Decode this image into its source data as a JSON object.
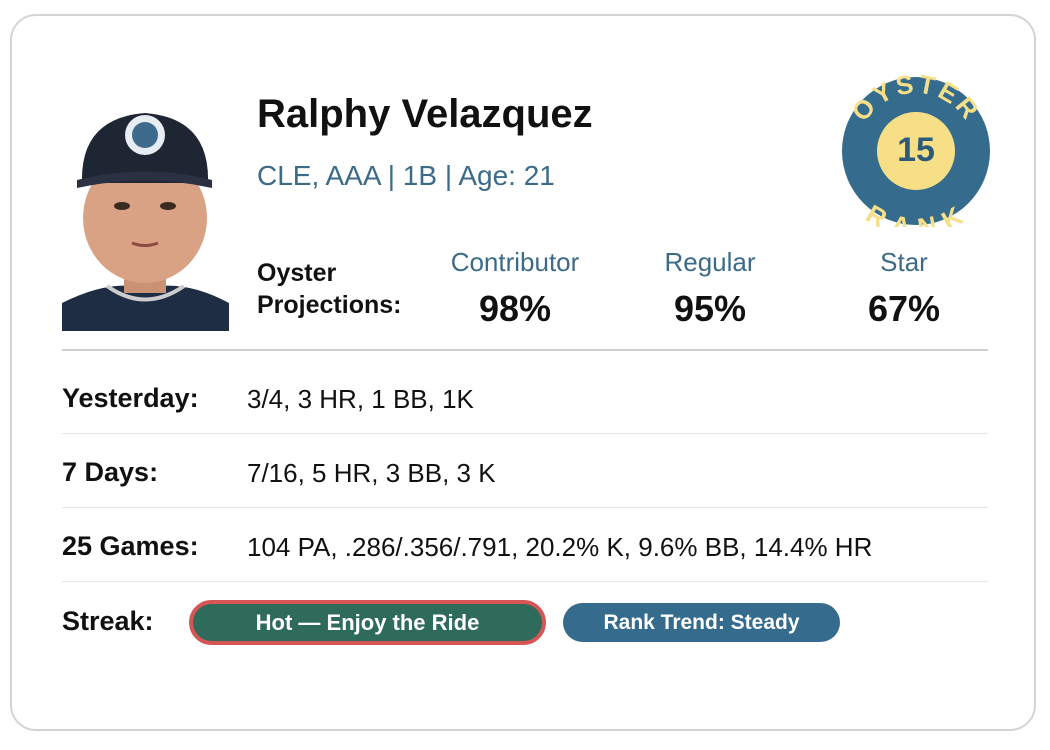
{
  "player": {
    "name": "Ralphy Velazquez",
    "info": "CLE, AAA | 1B | Age: 21"
  },
  "badge": {
    "top": "OYSTER",
    "rank": "15",
    "bottom": "RANK"
  },
  "projections": {
    "label": "Oyster Projections:",
    "items": [
      {
        "name": "Contributor",
        "value": "98%"
      },
      {
        "name": "Regular",
        "value": "95%"
      },
      {
        "name": "Star",
        "value": "67%"
      }
    ]
  },
  "stats": [
    {
      "label": "Yesterday:",
      "value": "3/4, 3 HR, 1 BB, 1K"
    },
    {
      "label": "7 Days:",
      "value": "7/16, 5 HR, 3 BB, 3 K"
    },
    {
      "label": "25 Games:",
      "value": "104 PA, .286/.356/.791, 20.2% K, 9.6% BB, 14.4% HR"
    }
  ],
  "streak": {
    "label": "Streak:",
    "hot": "Hot — Enjoy the Ride",
    "trend": "Rank Trend: Steady"
  }
}
